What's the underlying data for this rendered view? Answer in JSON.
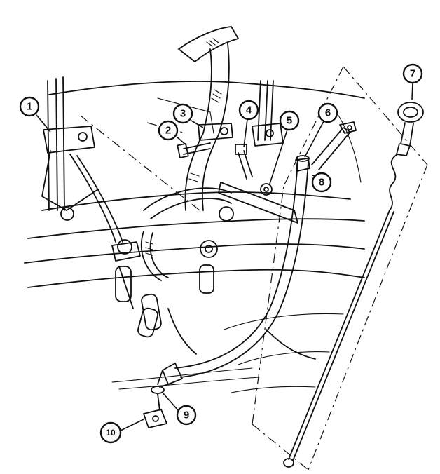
{
  "figure": {
    "callouts": [
      "1",
      "2",
      "3",
      "4",
      "5",
      "6",
      "7",
      "8",
      "9",
      "10"
    ]
  }
}
